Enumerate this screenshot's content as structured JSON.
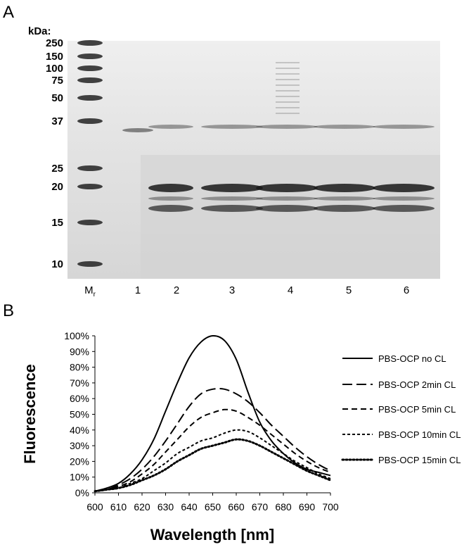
{
  "figure": {
    "panel_a_letter": "A",
    "panel_b_letter": "B"
  },
  "gel": {
    "unit_label": "kDa:",
    "marker_labels": [
      "250",
      "150",
      "100",
      "75",
      "50",
      "37",
      "25",
      "20",
      "15",
      "10"
    ],
    "lane_labels": [
      "M",
      "1",
      "2",
      "3",
      "4",
      "5",
      "6"
    ],
    "mr_subscript": "r"
  },
  "chart_data": {
    "type": "line",
    "title": "",
    "xlabel": "Wavelength [nm]",
    "ylabel": "Fluorescence",
    "xlim": [
      600,
      700
    ],
    "ylim": [
      0,
      100
    ],
    "x_ticks": [
      "600",
      "610",
      "620",
      "630",
      "640",
      "650",
      "660",
      "670",
      "680",
      "690",
      "700"
    ],
    "y_ticks": [
      "0%",
      "10%",
      "20%",
      "30%",
      "40%",
      "50%",
      "60%",
      "70%",
      "80%",
      "90%",
      "100%"
    ],
    "grid": false,
    "legend_position": "right",
    "x": [
      600,
      605,
      610,
      615,
      620,
      625,
      630,
      635,
      640,
      645,
      650,
      655,
      660,
      665,
      670,
      675,
      680,
      685,
      690,
      695,
      700
    ],
    "series": [
      {
        "name": "PBS-OCP no CL",
        "style": "solid",
        "values": [
          1,
          3,
          6,
          12,
          21,
          34,
          52,
          70,
          86,
          96,
          100,
          97,
          85,
          64,
          45,
          33,
          25,
          19,
          15,
          13,
          11
        ]
      },
      {
        "name": "PBS-OCP 2min CL",
        "style": "dashed",
        "values": [
          1,
          2,
          5,
          9,
          15,
          23,
          33,
          44,
          55,
          63,
          66,
          66,
          63,
          58,
          51,
          43,
          36,
          29,
          23,
          18,
          14
        ]
      },
      {
        "name": "PBS-OCP 5min CL",
        "style": "dash",
        "values": [
          1,
          2,
          4,
          7,
          12,
          18,
          26,
          34,
          42,
          48,
          51,
          53,
          52,
          48,
          43,
          37,
          31,
          25,
          20,
          16,
          13
        ]
      },
      {
        "name": "PBS-OCP 10min CL",
        "style": "short",
        "values": [
          1,
          2,
          3,
          6,
          9,
          14,
          19,
          25,
          29,
          33,
          35,
          38,
          40,
          39,
          35,
          30,
          25,
          20,
          16,
          12,
          9
        ]
      },
      {
        "name": "PBS-OCP 15min CL",
        "style": "dotted",
        "values": [
          1,
          2,
          3,
          5,
          8,
          11,
          15,
          20,
          24,
          28,
          30,
          32,
          34,
          33,
          30,
          26,
          22,
          18,
          14,
          11,
          8
        ]
      }
    ]
  }
}
